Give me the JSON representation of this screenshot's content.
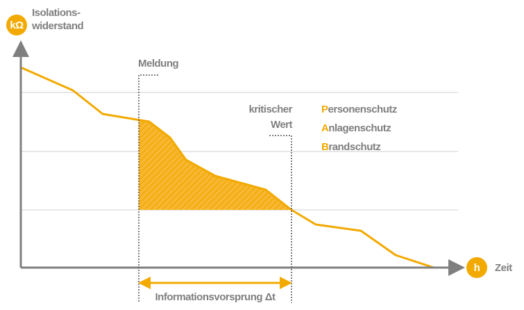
{
  "axes": {
    "y_unit": "kΩ",
    "y_label": [
      "Isolations-",
      "widerstand"
    ],
    "x_unit": "h",
    "x_label": "Zeit"
  },
  "markers": {
    "alarm": "Meldung",
    "critical": [
      "kritischer",
      "Wert"
    ],
    "span": "Informationsvorsprung Δt"
  },
  "protection": [
    {
      "initial": "P",
      "rest": "ersonenschutz"
    },
    {
      "initial": "A",
      "rest": "nlagenschutz"
    },
    {
      "initial": "B",
      "rest": "randschutz"
    }
  ]
}
